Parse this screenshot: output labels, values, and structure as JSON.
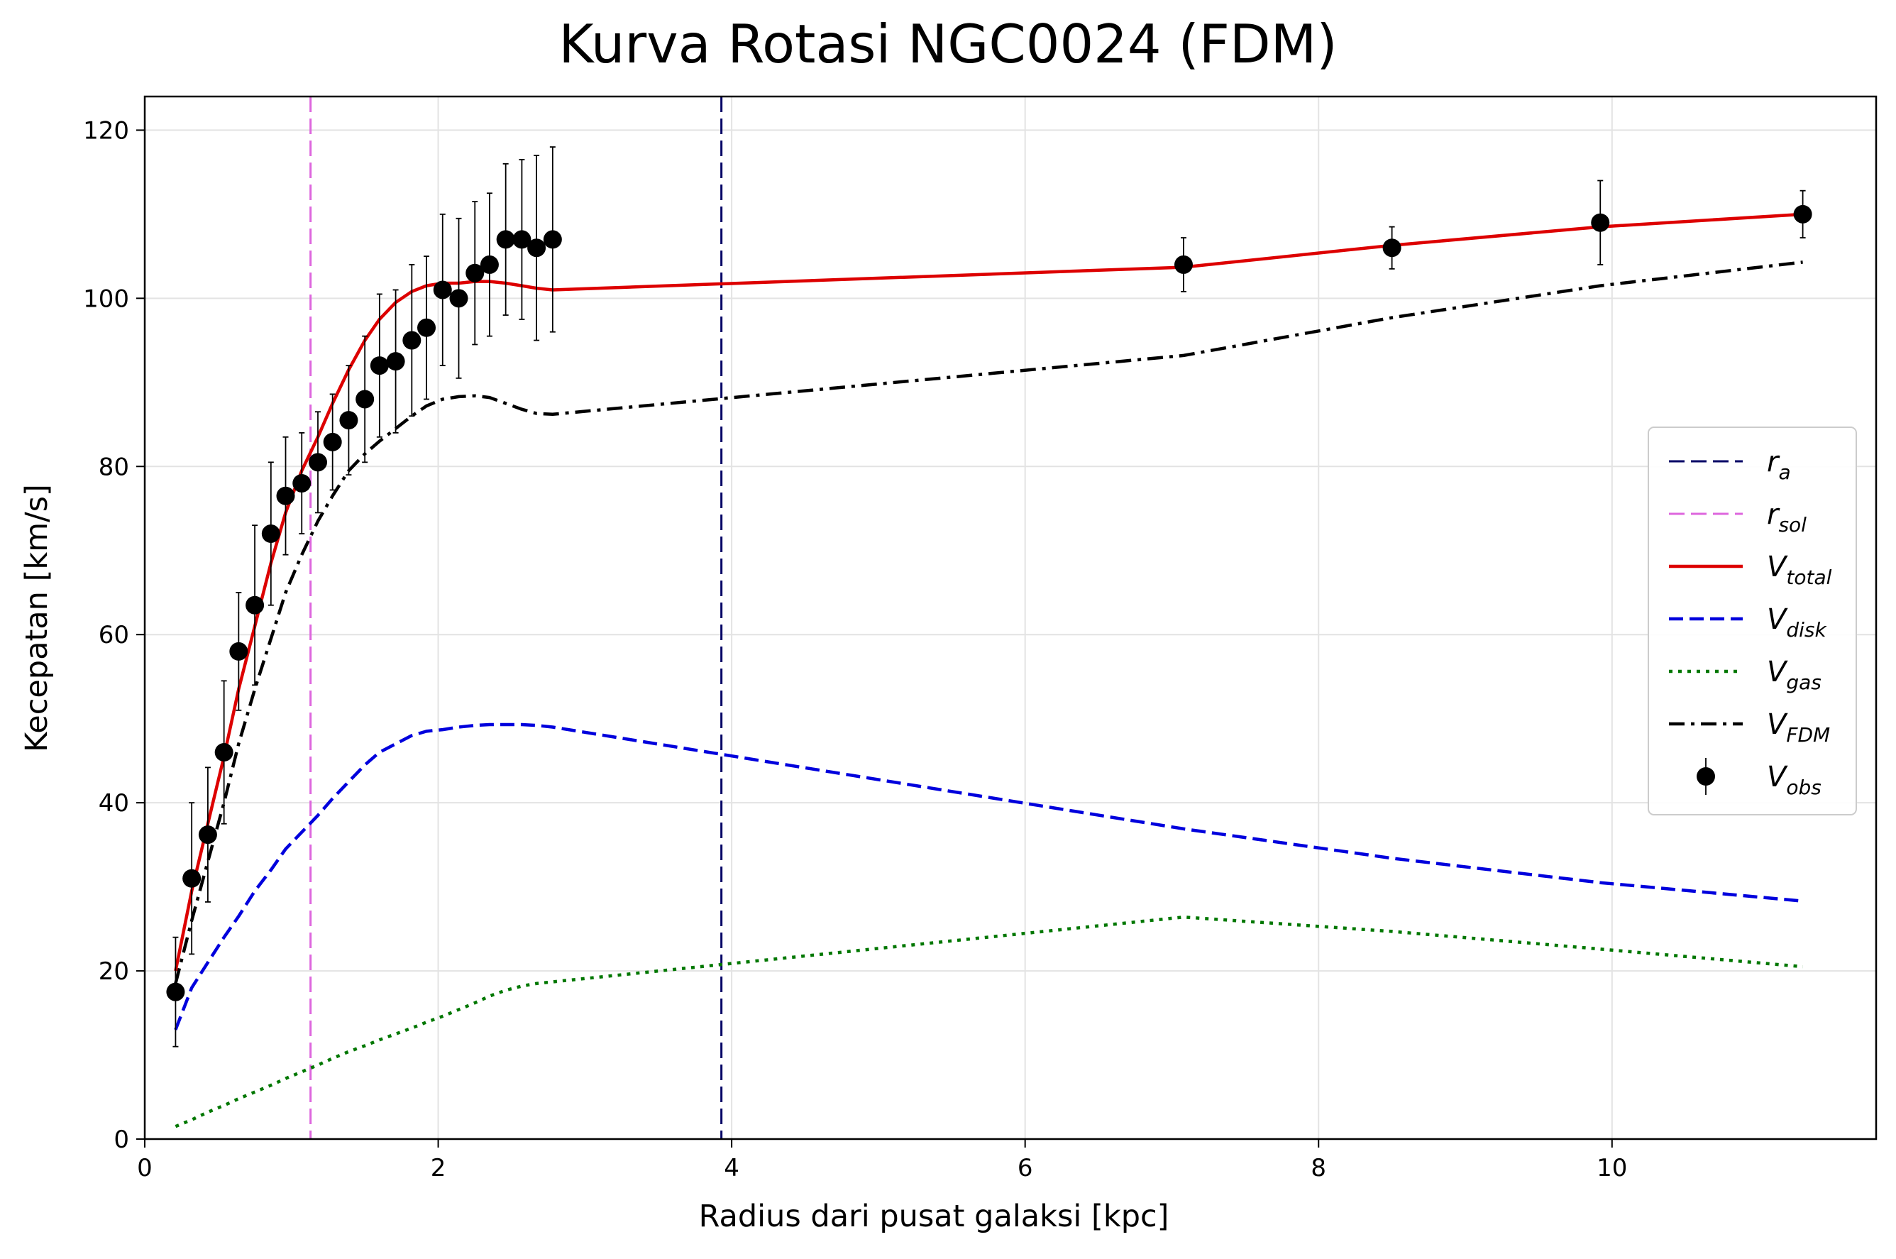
{
  "chart_data": {
    "type": "line",
    "title": "Kurva Rotasi NGC0024 (FDM)",
    "xlabel": "Radius dari pusat galaksi [kpc]",
    "ylabel": "Kecepatan [km/s]",
    "xlim": [
      0,
      11.8
    ],
    "ylim": [
      0,
      124
    ],
    "xticks": [
      0,
      2,
      4,
      6,
      8,
      10
    ],
    "yticks": [
      0,
      20,
      40,
      60,
      80,
      100,
      120
    ],
    "grid": true,
    "legend_position": "center-right",
    "vlines": [
      {
        "name": "r_a",
        "label_main": "r",
        "label_sub": "a",
        "x": 3.93,
        "color": "#000066",
        "dash": "dashed"
      },
      {
        "name": "r_sol",
        "label_main": "r",
        "label_sub": "sol",
        "x": 1.13,
        "color": "#dd66dd",
        "dash": "dashed"
      }
    ],
    "x": [
      0.21,
      0.32,
      0.43,
      0.54,
      0.64,
      0.75,
      0.86,
      0.96,
      1.07,
      1.18,
      1.28,
      1.39,
      1.5,
      1.6,
      1.71,
      1.82,
      1.92,
      2.03,
      2.14,
      2.25,
      2.35,
      2.46,
      2.57,
      2.67,
      2.78,
      7.08,
      8.5,
      9.92,
      11.3
    ],
    "series": [
      {
        "name": "V_total",
        "label_main": "V",
        "label_sub": "total",
        "color": "#dd0000",
        "dash": "solid",
        "values": [
          20.0,
          29.5,
          37.5,
          45.5,
          53.5,
          61.0,
          68.5,
          74.5,
          79.5,
          83.5,
          87.5,
          91.5,
          95.0,
          97.5,
          99.5,
          100.8,
          101.5,
          101.8,
          101.8,
          102.0,
          102.0,
          101.8,
          101.5,
          101.2,
          101.0,
          103.7,
          106.3,
          108.5,
          110.0
        ]
      },
      {
        "name": "V_disk",
        "label_main": "V",
        "label_sub": "disk",
        "color": "#0000dd",
        "dash": "dashed",
        "values": [
          13.0,
          18.0,
          21.0,
          24.0,
          26.5,
          29.5,
          32.0,
          34.5,
          36.5,
          38.5,
          40.5,
          42.5,
          44.5,
          46.0,
          47.0,
          48.0,
          48.5,
          48.7,
          49.0,
          49.2,
          49.3,
          49.3,
          49.3,
          49.2,
          49.0,
          36.9,
          33.4,
          30.5,
          28.3
        ]
      },
      {
        "name": "V_gas",
        "label_main": "V",
        "label_sub": "gas",
        "color": "#007700",
        "dash": "dotted",
        "values": [
          1.5,
          2.3,
          3.2,
          4.0,
          4.8,
          5.6,
          6.4,
          7.2,
          8.0,
          8.8,
          9.6,
          10.4,
          11.1,
          11.8,
          12.5,
          13.2,
          13.9,
          14.6,
          15.4,
          16.2,
          17.0,
          17.7,
          18.2,
          18.5,
          18.7,
          26.4,
          24.7,
          22.6,
          20.5
        ]
      },
      {
        "name": "V_FDM",
        "label_main": "V",
        "label_sub": "FDM",
        "color": "#000000",
        "dash": "dashdot",
        "values": [
          18.5,
          26.0,
          33.0,
          40.0,
          47.0,
          53.5,
          59.5,
          65.0,
          69.5,
          73.5,
          76.5,
          79.5,
          81.5,
          83.0,
          84.5,
          86.0,
          87.2,
          88.0,
          88.3,
          88.4,
          88.2,
          87.5,
          86.8,
          86.3,
          86.2,
          93.2,
          97.7,
          101.5,
          104.3
        ]
      },
      {
        "name": "V_obs",
        "label_main": "V",
        "label_sub": "obs",
        "color": "#000000",
        "marker": "circle",
        "values": [
          17.5,
          31.0,
          36.2,
          46.0,
          58.0,
          63.5,
          72.0,
          76.5,
          78.0,
          80.5,
          82.9,
          85.5,
          88.0,
          92.0,
          92.5,
          95.0,
          96.5,
          101.0,
          100.0,
          103.0,
          104.0,
          107.0,
          107.0,
          106.0,
          107.0,
          104.0,
          106.0,
          109.0,
          110.0
        ],
        "errors": [
          6.5,
          9.0,
          8.0,
          8.5,
          7.0,
          9.5,
          8.5,
          7.0,
          6.0,
          6.0,
          5.7,
          6.5,
          7.5,
          8.5,
          8.5,
          9.0,
          8.5,
          9.0,
          9.5,
          8.5,
          8.5,
          9.0,
          9.5,
          11.0,
          11.0,
          3.2,
          2.5,
          5.0,
          2.8
        ]
      }
    ]
  }
}
